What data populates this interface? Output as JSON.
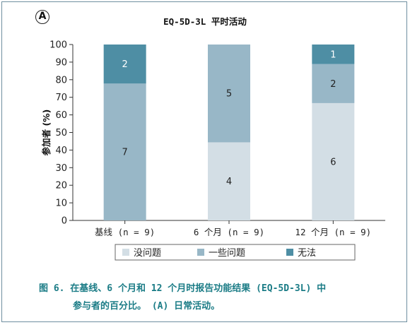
{
  "panel_letter": "A",
  "caption": {
    "line1": "图 6. 在基线、6 个月和 12 个月时报告功能结果 (EQ-5D-3L) 中",
    "line2": "参与者的百分比。 (A) 日常活动。"
  },
  "chart_data": {
    "type": "bar",
    "stacked": true,
    "title": "EQ-5D-3L 平时活动",
    "xlabel": "",
    "ylabel": "参加者 (%)",
    "ylim": [
      0,
      100
    ],
    "yticks": [
      0,
      10,
      20,
      30,
      40,
      50,
      60,
      70,
      80,
      90,
      100
    ],
    "grid": false,
    "legend_position": "bottom",
    "categories": [
      "基线 (n = 9)",
      "6 个月 (n = 9)",
      "12 个月 (n = 9)"
    ],
    "series": [
      {
        "name": "没问题",
        "color": "#d3dee5",
        "values": [
          0,
          44.4,
          66.7
        ],
        "counts": [
          null,
          "4",
          "6"
        ]
      },
      {
        "name": "一些问题",
        "color": "#98b7c7",
        "values": [
          77.8,
          55.6,
          22.2
        ],
        "counts": [
          "7",
          "5",
          "2"
        ]
      },
      {
        "name": "无法",
        "color": "#4e8ea4",
        "values": [
          22.2,
          0,
          11.1
        ],
        "counts": [
          "2",
          null,
          "1"
        ]
      }
    ]
  }
}
